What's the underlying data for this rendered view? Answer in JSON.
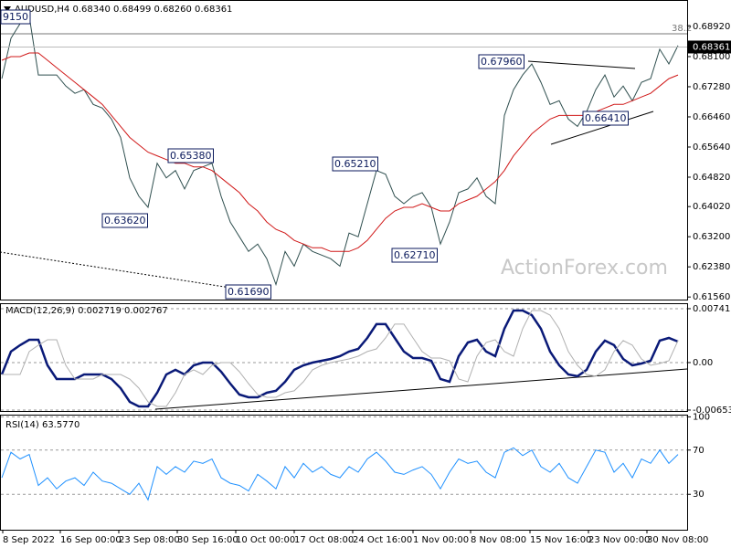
{
  "chart_data": [
    {
      "type": "line",
      "title": "AUDUSD,H4 0.68340 0.68499 0.68260 0.68361",
      "x": [
        0,
        1,
        2,
        3,
        4,
        5,
        6,
        7,
        8,
        9,
        10,
        11,
        12,
        13,
        14,
        15,
        16,
        17,
        18,
        19,
        20,
        21,
        22,
        23,
        24,
        25,
        26,
        27,
        28,
        29,
        30,
        31,
        32,
        33,
        34,
        35,
        36,
        37,
        38,
        39,
        40,
        41,
        42,
        43,
        44,
        45,
        46,
        47,
        48,
        49,
        50,
        51,
        52,
        53,
        54,
        55,
        56,
        57,
        58,
        59,
        60,
        61,
        62,
        63,
        64,
        65,
        66,
        67,
        68,
        69,
        70,
        71,
        72,
        73,
        74
      ],
      "xlim": [
        -0.2,
        75
      ],
      "ylim": [
        0.6149,
        0.6964
      ],
      "yticks": [
        {
          "value": 0.6892,
          "label": "0.68920"
        },
        {
          "value": 0.681,
          "label": "0.68100"
        },
        {
          "value": 0.6728,
          "label": "0.67280"
        },
        {
          "value": 0.6646,
          "label": "0.66460"
        },
        {
          "value": 0.6564,
          "label": "0.65640"
        },
        {
          "value": 0.6482,
          "label": "0.64820"
        },
        {
          "value": 0.6402,
          "label": "0.64020"
        },
        {
          "value": 0.632,
          "label": "0.63200"
        },
        {
          "value": 0.6238,
          "label": "0.62380"
        },
        {
          "value": 0.6156,
          "label": "0.61560"
        }
      ],
      "grid": false,
      "series": [
        {
          "color": "#2f4f4f",
          "values": [
            0.675,
            0.686,
            0.69,
            0.692,
            0.676,
            0.676,
            0.676,
            0.673,
            0.671,
            0.672,
            0.668,
            0.667,
            0.664,
            0.659,
            0.648,
            0.643,
            0.64,
            0.652,
            0.648,
            0.65,
            0.645,
            0.65,
            0.651,
            0.652,
            0.643,
            0.636,
            0.632,
            0.628,
            0.63,
            0.626,
            0.619,
            0.628,
            0.624,
            0.63,
            0.628,
            0.627,
            0.626,
            0.624,
            0.633,
            0.632,
            0.641,
            0.65,
            0.649,
            0.643,
            0.641,
            0.643,
            0.644,
            0.64,
            0.63,
            0.636,
            0.644,
            0.645,
            0.648,
            0.643,
            0.641,
            0.665,
            0.672,
            0.676,
            0.679,
            0.674,
            0.668,
            0.669,
            0.664,
            0.662,
            0.666,
            0.672,
            0.676,
            0.67,
            0.673,
            0.669,
            0.674,
            0.675,
            0.683,
            0.679,
            0.684
          ]
        },
        {
          "color": "#d01818",
          "values": [
            0.68,
            0.681,
            0.681,
            0.682,
            0.682,
            0.68,
            0.678,
            0.676,
            0.674,
            0.672,
            0.67,
            0.668,
            0.665,
            0.662,
            0.659,
            0.657,
            0.655,
            0.654,
            0.653,
            0.652,
            0.652,
            0.651,
            0.651,
            0.65,
            0.648,
            0.646,
            0.644,
            0.641,
            0.639,
            0.636,
            0.634,
            0.633,
            0.631,
            0.63,
            0.629,
            0.629,
            0.628,
            0.628,
            0.628,
            0.629,
            0.631,
            0.634,
            0.637,
            0.639,
            0.64,
            0.64,
            0.641,
            0.64,
            0.639,
            0.639,
            0.641,
            0.642,
            0.643,
            0.645,
            0.647,
            0.65,
            0.654,
            0.657,
            0.66,
            0.662,
            0.664,
            0.665,
            0.665,
            0.665,
            0.665,
            0.666,
            0.667,
            0.668,
            0.668,
            0.669,
            0.67,
            0.671,
            0.673,
            0.675,
            0.676
          ]
        }
      ],
      "last_price": 0.68361,
      "fibo_label": "38.2",
      "annotations": [
        "9150",
        "0.67960",
        "0.66410",
        "0.65380",
        "0.65210",
        "0.63620",
        "0.62710",
        "0.61690"
      ],
      "watermark": "ActionForex.com"
    },
    {
      "type": "line",
      "title": "MACD(12,26,9) 0.002719 0.002767",
      "ylim": [
        -0.00666,
        0.00816
      ],
      "yticks": [
        0.007411,
        {
          "value": 0,
          "label": "0.00"
        },
        -0.006532
      ],
      "grid": true,
      "series": [
        {
          "color": "#0a1a78",
          "values": [
            -0.00163,
            0.00151,
            0.00239,
            0.00314,
            0.00314,
            -0.00038,
            -0.00226,
            -0.00226,
            -0.00226,
            -0.00163,
            -0.00163,
            -0.00163,
            -0.00226,
            -0.00352,
            -0.0054,
            -0.00603,
            -0.00603,
            -0.00415,
            -0.00163,
            -0.001,
            -0.00163,
            -0.00038,
            0,
            0,
            -0.00126,
            -0.00289,
            -0.0044,
            -0.00477,
            -0.00477,
            -0.00415,
            -0.00389,
            -0.00264,
            -0.001,
            -0.00038,
            0,
            0.00025,
            0.0005,
            0.00088,
            0.00151,
            0.00188,
            0.00339,
            0.00528,
            0.00528,
            0.00339,
            0.00151,
            0.00063,
            0.00063,
            0.00025,
            -0.00226,
            -0.00264,
            0.00088,
            0.00276,
            0.00314,
            0.00151,
            0.00088,
            0.00465,
            0.00716,
            0.00716,
            0.00653,
            0.00465,
            0.00151,
            -0.00038,
            -0.00163,
            -0.00188,
            -0.001,
            0.00151,
            0.00302,
            0.00239,
            0.0005,
            -0.00038,
            -0.00013,
            0.00025,
            0.00302,
            0.00339,
            0.00289
          ]
        },
        {
          "color": "#b0b0b0",
          "values": [
            -0.00163,
            -0.00163,
            -0.00163,
            0.00151,
            0.00239,
            0.00314,
            0.00314,
            -0.00038,
            -0.00226,
            -0.00226,
            -0.00226,
            -0.00163,
            -0.00163,
            -0.00163,
            -0.00226,
            -0.00352,
            -0.0054,
            -0.00603,
            -0.00603,
            -0.00415,
            -0.00163,
            -0.001,
            -0.00163,
            -0.00038,
            0,
            0,
            -0.00126,
            -0.00289,
            -0.0044,
            -0.00477,
            -0.00477,
            -0.00415,
            -0.00389,
            -0.00264,
            -0.001,
            -0.00038,
            0,
            0.00025,
            0.0005,
            0.00088,
            0.00151,
            0.00188,
            0.00339,
            0.00528,
            0.00528,
            0.00339,
            0.00151,
            0.00063,
            0.00063,
            0.00025,
            -0.00226,
            -0.00264,
            0.00088,
            0.00276,
            0.00314,
            0.00151,
            0.00088,
            0.00465,
            0.00716,
            0.00716,
            0.00653,
            0.00465,
            0.00151,
            -0.00038,
            -0.00163,
            -0.00188,
            -0.001,
            0.00151,
            0.00302,
            0.00239,
            0.0005,
            -0.00038,
            -0.00013,
            0.00025,
            0.00302
          ]
        }
      ]
    },
    {
      "type": "line",
      "title": "RSI(14) 63.5770",
      "ylim": [
        -2,
        102
      ],
      "yticks": [
        100,
        70,
        30
      ],
      "grid": true,
      "xticks": [
        {
          "value": 0.1,
          "label": "8 Sep 2022"
        },
        {
          "value": 6.4,
          "label": "16 Sep 00:00"
        },
        {
          "value": 12.8,
          "label": "23 Sep 08:00"
        },
        {
          "value": 19.2,
          "label": "30 Sep 16:00"
        },
        {
          "value": 25.6,
          "label": "10 Oct 00:00"
        },
        {
          "value": 32,
          "label": "17 Oct 08:00"
        },
        {
          "value": 38.4,
          "label": "24 Oct 16:00"
        },
        {
          "value": 45,
          "label": "1 Nov 00:00"
        },
        {
          "value": 51.3,
          "label": "8 Nov 08:00"
        },
        {
          "value": 57.8,
          "label": "15 Nov 16:00"
        },
        {
          "value": 64.2,
          "label": "23 Nov 00:00"
        },
        {
          "value": 70.6,
          "label": "30 Nov 08:00"
        }
      ],
      "series": [
        {
          "color": "#1e90ff",
          "values": [
            45,
            68,
            62,
            66,
            38,
            45,
            35,
            42,
            45,
            38,
            50,
            42,
            40,
            35,
            30,
            40,
            25,
            55,
            48,
            55,
            50,
            60,
            58,
            62,
            45,
            40,
            38,
            33,
            48,
            42,
            35,
            55,
            45,
            58,
            50,
            55,
            48,
            45,
            55,
            50,
            62,
            68,
            60,
            50,
            48,
            52,
            55,
            48,
            35,
            50,
            62,
            58,
            60,
            50,
            45,
            68,
            72,
            65,
            70,
            55,
            50,
            58,
            45,
            40,
            55,
            70,
            68,
            50,
            58,
            45,
            62,
            58,
            70,
            58,
            66
          ]
        }
      ]
    }
  ]
}
